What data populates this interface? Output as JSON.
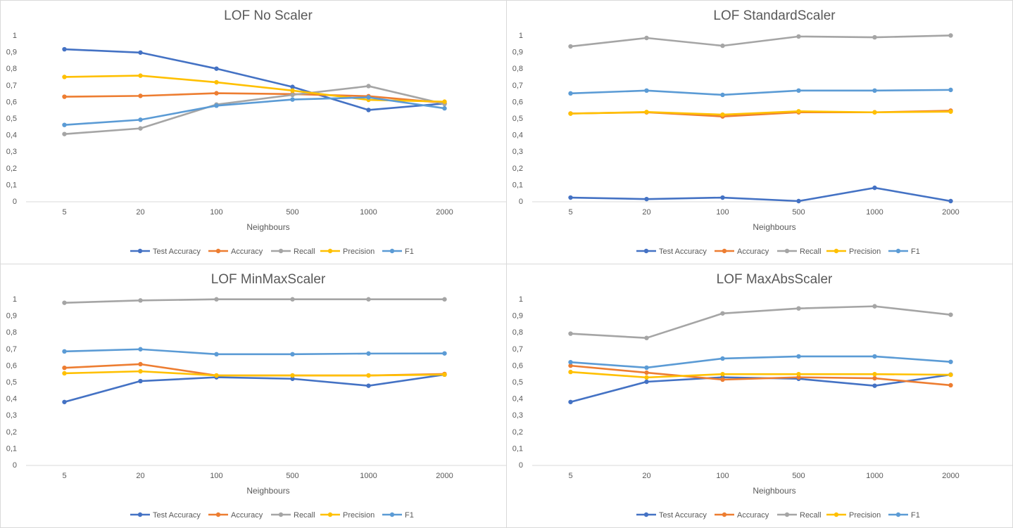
{
  "colors": {
    "Test Accuracy": "#4472c4",
    "Accuracy": "#ed7d31",
    "Recall": "#a5a5a5",
    "Precision": "#ffc000",
    "F1": "#5b9bd5"
  },
  "chart_data": [
    {
      "type": "line",
      "title": "LOF No Scaler",
      "xlabel": "Neighbours",
      "ylabel": "",
      "categories": [
        "5",
        "20",
        "100",
        "500",
        "1000",
        "2000"
      ],
      "yticks": [
        "0",
        "0,1",
        "0,2",
        "0,3",
        "0,4",
        "0,5",
        "0,6",
        "0,7",
        "0,8",
        "0,9",
        "1"
      ],
      "ylim": [
        0,
        1
      ],
      "grid": false,
      "legend": "bottom",
      "series": [
        {
          "name": "Test Accuracy",
          "values": [
            0.915,
            0.895,
            0.798,
            0.688,
            0.549,
            0.588
          ]
        },
        {
          "name": "Accuracy",
          "values": [
            0.629,
            0.634,
            0.65,
            0.645,
            0.632,
            0.592
          ]
        },
        {
          "name": "Recall",
          "values": [
            0.404,
            0.438,
            0.582,
            0.64,
            0.693,
            0.585
          ]
        },
        {
          "name": "Precision",
          "values": [
            0.748,
            0.756,
            0.716,
            0.666,
            0.61,
            0.599
          ]
        },
        {
          "name": "F1",
          "values": [
            0.459,
            0.49,
            0.575,
            0.612,
            0.625,
            0.559
          ]
        }
      ]
    },
    {
      "type": "line",
      "title": "LOF StandardScaler",
      "xlabel": "Neighbours",
      "ylabel": "",
      "categories": [
        "5",
        "20",
        "100",
        "500",
        "1000",
        "2000"
      ],
      "yticks": [
        "0",
        "0,1",
        "0,2",
        "0,3",
        "0,4",
        "0,5",
        "0,6",
        "0,7",
        "0,8",
        "0,9",
        "1"
      ],
      "ylim": [
        0,
        1
      ],
      "grid": false,
      "legend": "bottom",
      "series": [
        {
          "name": "Test Accuracy",
          "values": [
            0.021,
            0.012,
            0.021,
            0.0,
            0.08,
            0.0
          ]
        },
        {
          "name": "Accuracy",
          "values": [
            0.528,
            0.535,
            0.51,
            0.535,
            0.535,
            0.545
          ]
        },
        {
          "name": "Recall",
          "values": [
            0.932,
            0.983,
            0.936,
            0.992,
            0.987,
            0.998
          ]
        },
        {
          "name": "Precision",
          "values": [
            0.527,
            0.537,
            0.521,
            0.541,
            0.535,
            0.539
          ]
        },
        {
          "name": "F1",
          "values": [
            0.649,
            0.666,
            0.64,
            0.666,
            0.666,
            0.67
          ]
        }
      ]
    },
    {
      "type": "line",
      "title": "LOF MinMaxScaler",
      "xlabel": "Neighbours",
      "ylabel": "",
      "categories": [
        "5",
        "20",
        "100",
        "500",
        "1000",
        "2000"
      ],
      "yticks": [
        "0",
        "0,1",
        "0,2",
        "0,3",
        "0,4",
        "0,5",
        "0,6",
        "0,7",
        "0,8",
        "0,9",
        "1"
      ],
      "ylim": [
        0,
        1
      ],
      "grid": false,
      "legend": "bottom",
      "series": [
        {
          "name": "Test Accuracy",
          "values": [
            0.378,
            0.504,
            0.527,
            0.518,
            0.476,
            0.543
          ]
        },
        {
          "name": "Accuracy",
          "values": [
            0.584,
            0.606,
            0.538,
            0.538,
            0.538,
            0.547
          ]
        },
        {
          "name": "Recall",
          "values": [
            0.976,
            0.99,
            0.997,
            0.997,
            0.997,
            0.997
          ]
        },
        {
          "name": "Precision",
          "values": [
            0.551,
            0.563,
            0.538,
            0.538,
            0.538,
            0.543
          ]
        },
        {
          "name": "F1",
          "values": [
            0.683,
            0.696,
            0.666,
            0.666,
            0.67,
            0.671
          ]
        }
      ]
    },
    {
      "type": "line",
      "title": "LOF MaxAbsScaler",
      "xlabel": "Neighbours",
      "ylabel": "",
      "categories": [
        "5",
        "20",
        "100",
        "500",
        "1000",
        "2000"
      ],
      "yticks": [
        "0",
        "0,1",
        "0,2",
        "0,3",
        "0,4",
        "0,5",
        "0,6",
        "0,7",
        "0,8",
        "0,9",
        "1"
      ],
      "ylim": [
        0,
        1
      ],
      "grid": false,
      "legend": "bottom",
      "series": [
        {
          "name": "Test Accuracy",
          "values": [
            0.378,
            0.5,
            0.527,
            0.518,
            0.476,
            0.543
          ]
        },
        {
          "name": "Accuracy",
          "values": [
            0.597,
            0.555,
            0.513,
            0.527,
            0.521,
            0.479
          ]
        },
        {
          "name": "Recall",
          "values": [
            0.79,
            0.764,
            0.912,
            0.942,
            0.955,
            0.904
          ]
        },
        {
          "name": "Precision",
          "values": [
            0.559,
            0.526,
            0.546,
            0.546,
            0.546,
            0.542
          ]
        },
        {
          "name": "F1",
          "values": [
            0.618,
            0.585,
            0.64,
            0.653,
            0.653,
            0.62
          ]
        }
      ]
    }
  ]
}
